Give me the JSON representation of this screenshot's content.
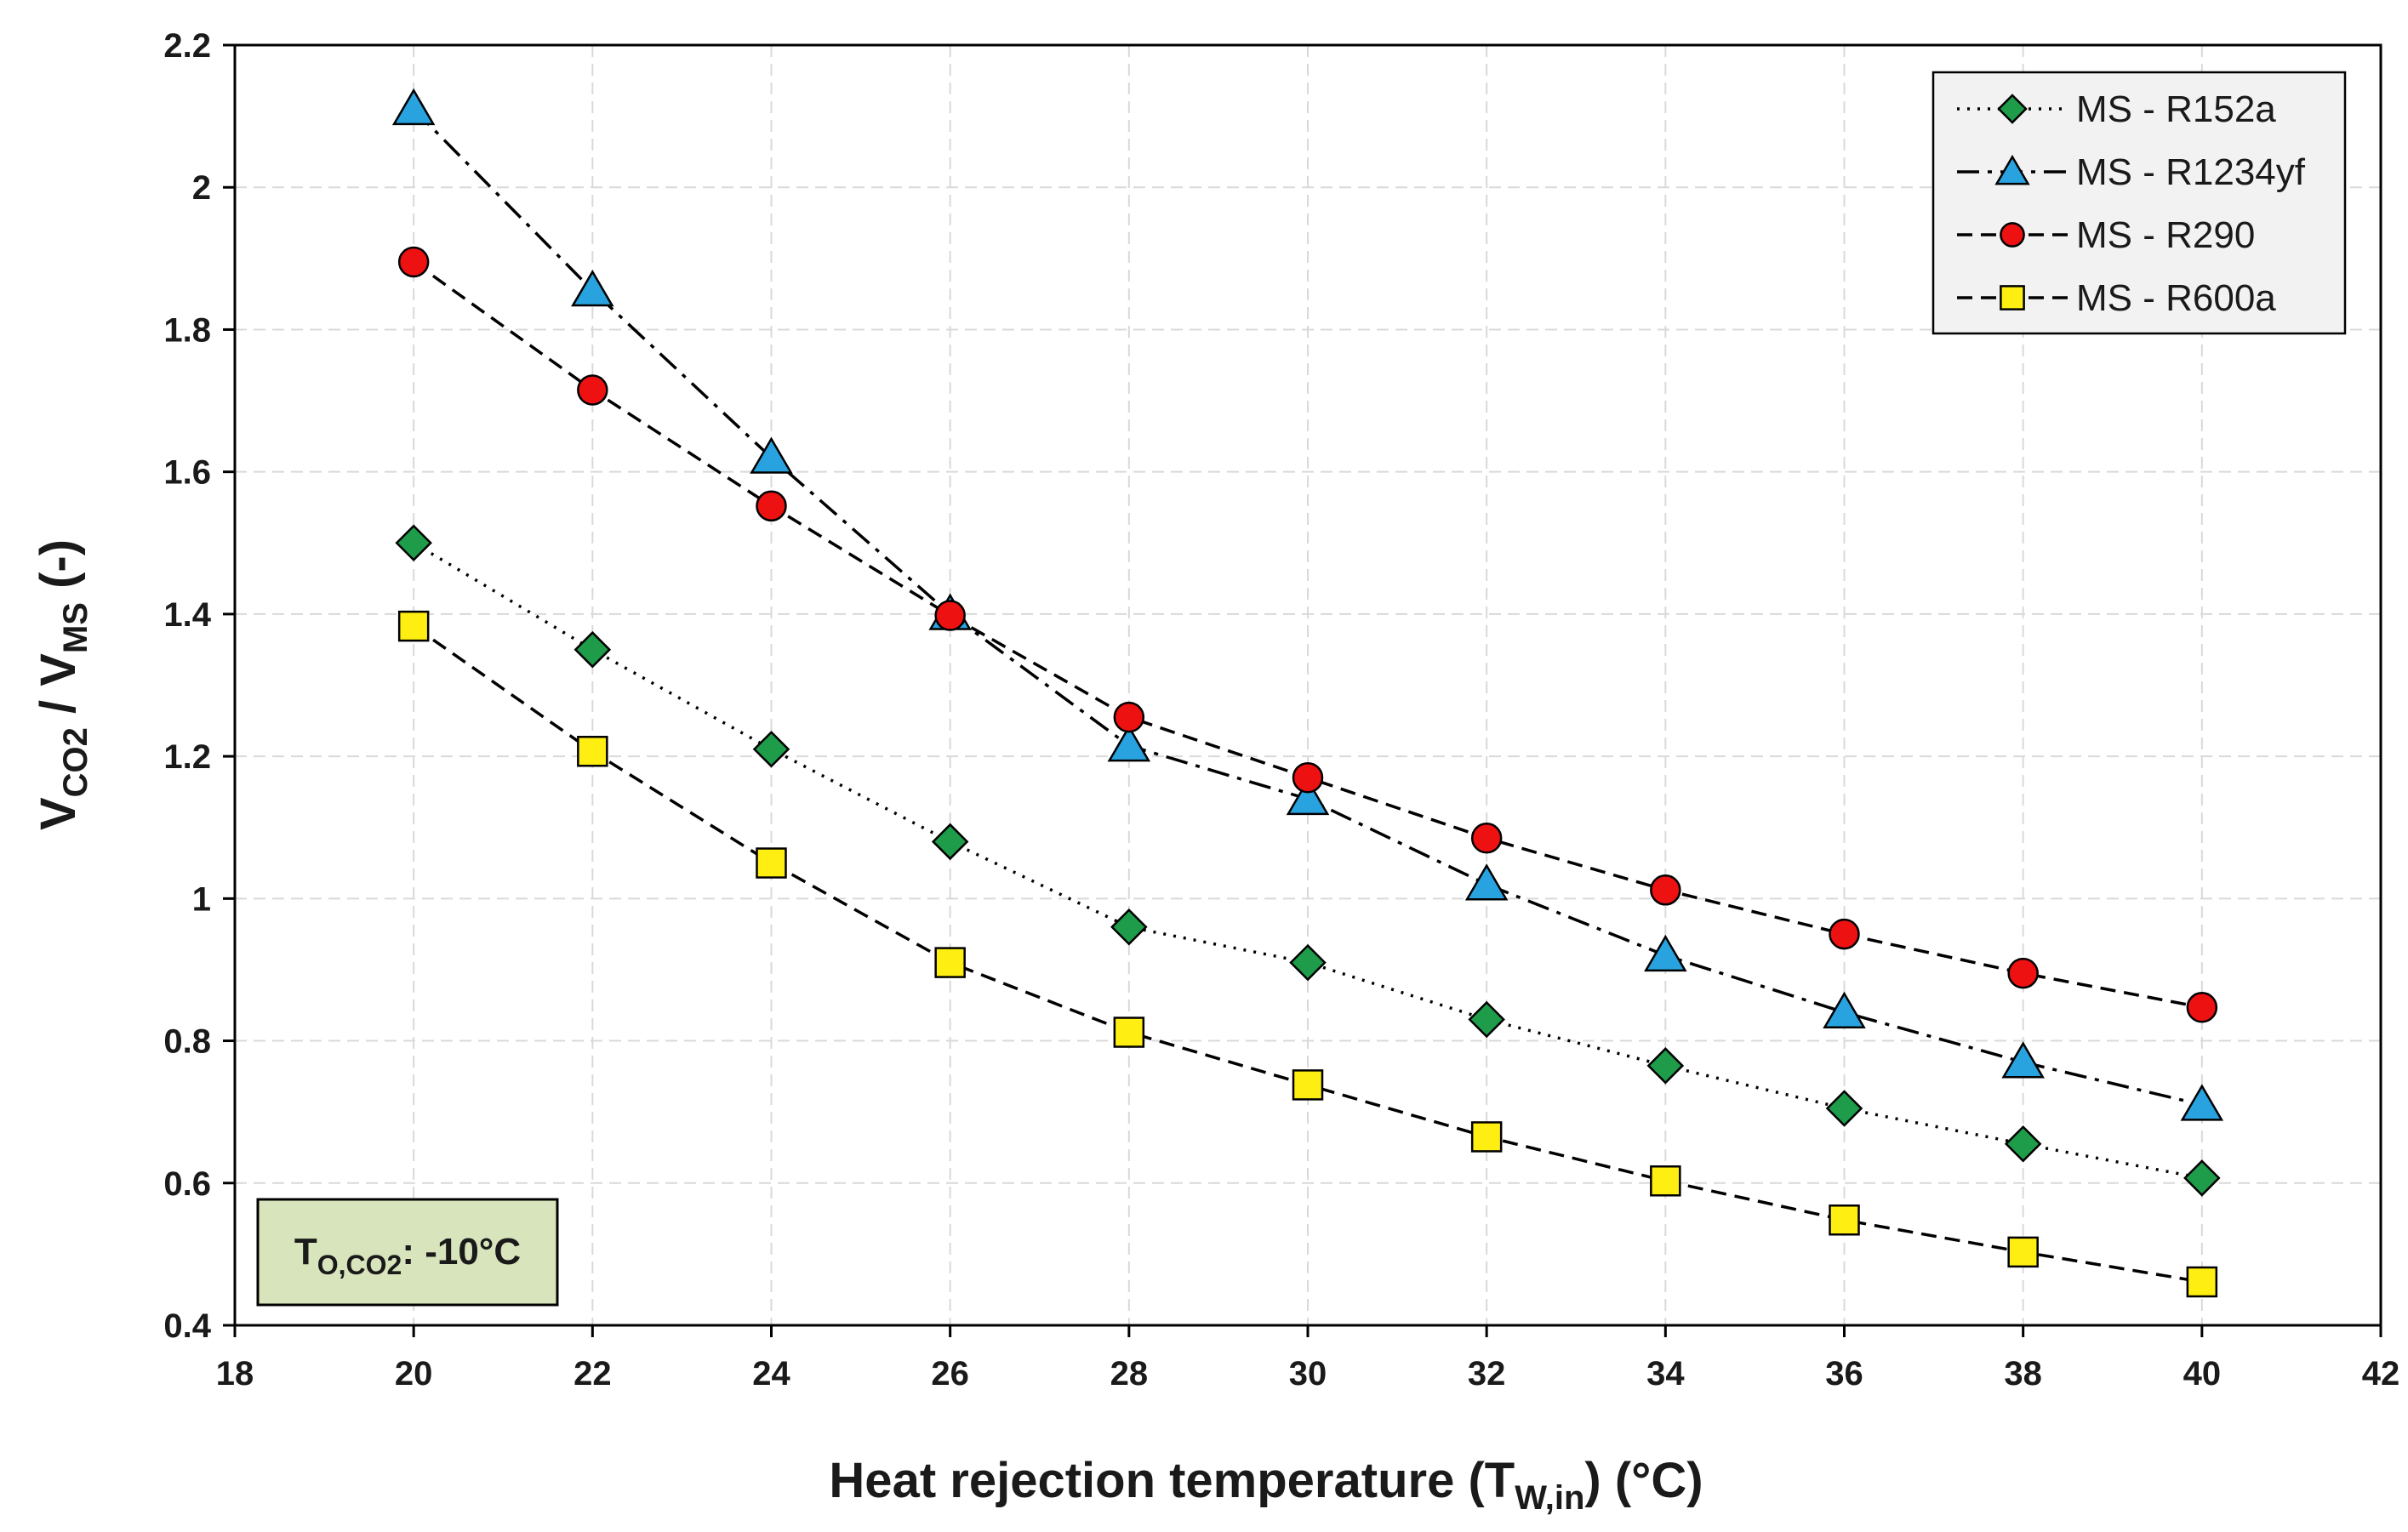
{
  "chart_data": {
    "type": "line",
    "xlabel": {
      "main": "Heat rejection temperature (T",
      "sub": "W,in",
      "tail": ") (°C)"
    },
    "ylabel": {
      "p1": "V",
      "s1": "CO2",
      "p2": " / V",
      "s2": "MS",
      "p3": " (-)"
    },
    "xlim": [
      18,
      42
    ],
    "ylim": [
      0.4,
      2.2
    ],
    "xticks": [
      18,
      20,
      22,
      24,
      26,
      28,
      30,
      32,
      34,
      36,
      38,
      40,
      42
    ],
    "yticks": [
      0.4,
      0.6,
      0.8,
      1,
      1.2,
      1.4,
      1.6,
      1.8,
      2,
      2.2
    ],
    "ytick_labels": [
      "0.4",
      "0.6",
      "0.8",
      "1",
      "1.2",
      "1.4",
      "1.6",
      "1.8",
      "2",
      "2.2"
    ],
    "grid": true,
    "legend_position": "top-right",
    "annotation": {
      "main": "T",
      "sub": "O,CO2",
      "tail": ": -10°C"
    },
    "x": [
      20,
      22,
      24,
      26,
      28,
      30,
      32,
      34,
      36,
      38,
      40
    ],
    "series": [
      {
        "name": "MS - R152a",
        "marker": "diamond",
        "color": "#1e9c4a",
        "dash": "dotted",
        "values": [
          1.5,
          1.35,
          1.21,
          1.08,
          0.96,
          0.91,
          0.83,
          0.765,
          0.705,
          0.655,
          0.607
        ]
      },
      {
        "name": "MS - R1234yf",
        "marker": "triangle",
        "color": "#29a3e0",
        "dash": "dashdot",
        "values": [
          2.11,
          1.855,
          1.62,
          1.4,
          1.215,
          1.14,
          1.02,
          0.92,
          0.84,
          0.77,
          0.71
        ]
      },
      {
        "name": "MS - R290",
        "marker": "circle",
        "color": "#ee1111",
        "dash": "dashed",
        "values": [
          1.895,
          1.715,
          1.552,
          1.398,
          1.255,
          1.17,
          1.085,
          1.012,
          0.95,
          0.895,
          0.847
        ]
      },
      {
        "name": "MS - R600a",
        "marker": "square",
        "color": "#ffee11",
        "dash": "dashed",
        "values": [
          1.383,
          1.207,
          1.05,
          0.91,
          0.812,
          0.738,
          0.665,
          0.603,
          0.548,
          0.503,
          0.461
        ]
      }
    ]
  }
}
